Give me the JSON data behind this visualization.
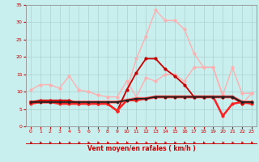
{
  "title": "",
  "xlabel": "Vent moyen/en rafales ( km/h )",
  "ylabel": "",
  "xlim": [
    -0.5,
    23.5
  ],
  "ylim": [
    0,
    35
  ],
  "yticks": [
    0,
    5,
    10,
    15,
    20,
    25,
    30,
    35
  ],
  "xticks": [
    0,
    1,
    2,
    3,
    4,
    5,
    6,
    7,
    8,
    9,
    10,
    11,
    12,
    13,
    14,
    15,
    16,
    17,
    18,
    19,
    20,
    21,
    22,
    23
  ],
  "background_color": "#c8eeee",
  "grid_color": "#aacccc",
  "lines": [
    {
      "label": "light_pink_lower",
      "x": [
        0,
        1,
        2,
        3,
        4,
        5,
        6,
        7,
        8,
        9,
        10,
        11,
        12,
        13,
        14,
        15,
        16,
        17,
        18,
        19,
        20,
        21,
        22,
        23
      ],
      "y": [
        10.5,
        12,
        12,
        11,
        14.5,
        10.5,
        10,
        9,
        8.5,
        8.5,
        13,
        8.5,
        14,
        13,
        15,
        15,
        13,
        17,
        17,
        17,
        9,
        17,
        9.5,
        9.5
      ],
      "color": "#ffb0b0",
      "lw": 1.0,
      "marker": "o",
      "ms": 2.0,
      "zorder": 3
    },
    {
      "label": "light_pink_upper",
      "x": [
        0,
        1,
        2,
        3,
        4,
        5,
        6,
        7,
        8,
        9,
        10,
        11,
        12,
        13,
        14,
        15,
        16,
        17,
        18,
        19,
        20,
        21,
        22,
        23
      ],
      "y": [
        7,
        7.5,
        7.5,
        7.5,
        7.5,
        7,
        7,
        6.5,
        6.5,
        4.5,
        10.5,
        19.5,
        26,
        33.5,
        30.5,
        30.5,
        28,
        21,
        17,
        17,
        8.5,
        8.5,
        6.5,
        9.5
      ],
      "color": "#ffb0b0",
      "lw": 1.0,
      "marker": "o",
      "ms": 2.0,
      "zorder": 3
    },
    {
      "label": "salmon_thick",
      "x": [
        0,
        1,
        2,
        3,
        4,
        5,
        6,
        7,
        8,
        9,
        10,
        11,
        12,
        13,
        14,
        15,
        16,
        17,
        18,
        19,
        20,
        21,
        22,
        23
      ],
      "y": [
        7,
        7,
        7,
        7,
        7,
        7,
        7,
        7,
        7,
        7,
        7.5,
        8,
        8,
        8.5,
        8.5,
        8.5,
        8.5,
        8.5,
        8.5,
        8.5,
        8.5,
        8.5,
        7,
        7
      ],
      "color": "#ff7777",
      "lw": 2.8,
      "marker": "o",
      "ms": 2.0,
      "zorder": 4
    },
    {
      "label": "dark_red_medium",
      "x": [
        0,
        1,
        2,
        3,
        4,
        5,
        6,
        7,
        8,
        9,
        10,
        11,
        12,
        13,
        14,
        15,
        16,
        17,
        18,
        19,
        20,
        21,
        22,
        23
      ],
      "y": [
        7,
        7.5,
        7.5,
        7.5,
        7.5,
        6.5,
        6.5,
        6.5,
        6.5,
        4.5,
        10.5,
        15.5,
        19.5,
        19.5,
        16.5,
        14.5,
        12,
        8.5,
        8.5,
        8.5,
        8.5,
        8.5,
        6.5,
        7
      ],
      "color": "#cc0000",
      "lw": 1.3,
      "marker": "o",
      "ms": 2.0,
      "zorder": 5
    },
    {
      "label": "black_line",
      "x": [
        0,
        1,
        2,
        3,
        4,
        5,
        6,
        7,
        8,
        9,
        10,
        11,
        12,
        13,
        14,
        15,
        16,
        17,
        18,
        19,
        20,
        21,
        22,
        23
      ],
      "y": [
        7,
        7,
        7,
        7,
        7,
        7,
        7,
        7,
        7,
        7,
        7.5,
        8,
        8,
        8.5,
        8.5,
        8.5,
        8.5,
        8.5,
        8.5,
        8.5,
        8.5,
        8.5,
        7,
        7
      ],
      "color": "#222222",
      "lw": 1.3,
      "marker": "o",
      "ms": 1.5,
      "zorder": 6
    },
    {
      "label": "red_spiky",
      "x": [
        0,
        1,
        2,
        3,
        4,
        5,
        6,
        7,
        8,
        9,
        10,
        11,
        12,
        13,
        14,
        15,
        16,
        17,
        18,
        19,
        20,
        21,
        22,
        23
      ],
      "y": [
        6.5,
        7,
        7,
        6.5,
        6.5,
        6.5,
        6.5,
        6.5,
        6.5,
        4.5,
        7.5,
        7.5,
        8,
        8.5,
        8.5,
        8.5,
        8.5,
        8.5,
        8.5,
        8.5,
        3,
        6.5,
        7,
        6.5
      ],
      "color": "#ff2222",
      "lw": 1.8,
      "marker": "o",
      "ms": 2.0,
      "zorder": 5
    }
  ]
}
